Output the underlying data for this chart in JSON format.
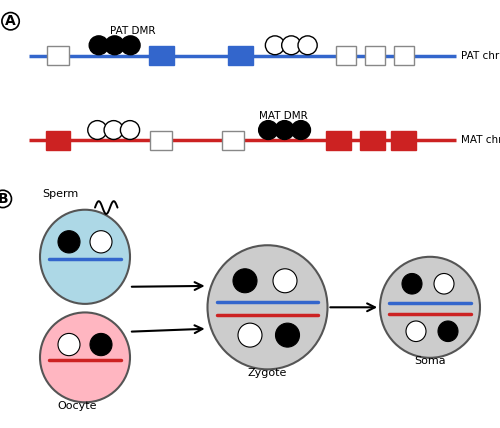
{
  "fig_width": 5.0,
  "fig_height": 4.28,
  "dpi": 100,
  "blue_color": "#3366CC",
  "red_color": "#CC2222",
  "sperm_fill": "#ADD8E6",
  "oocyte_fill": "#FFB6C1",
  "cell_fill": "#CCCCCC",
  "panel_A_label": "A",
  "panel_B_label": "B",
  "pat_chr_label": "PAT chr",
  "mat_chr_label": "MAT chr",
  "pat_dmr_label": "PAT DMR",
  "mat_dmr_label": "MAT DMR",
  "sperm_label": "Sperm",
  "oocyte_label": "Oocyte",
  "zygote_label": "Zygote",
  "soma_label": "Soma"
}
